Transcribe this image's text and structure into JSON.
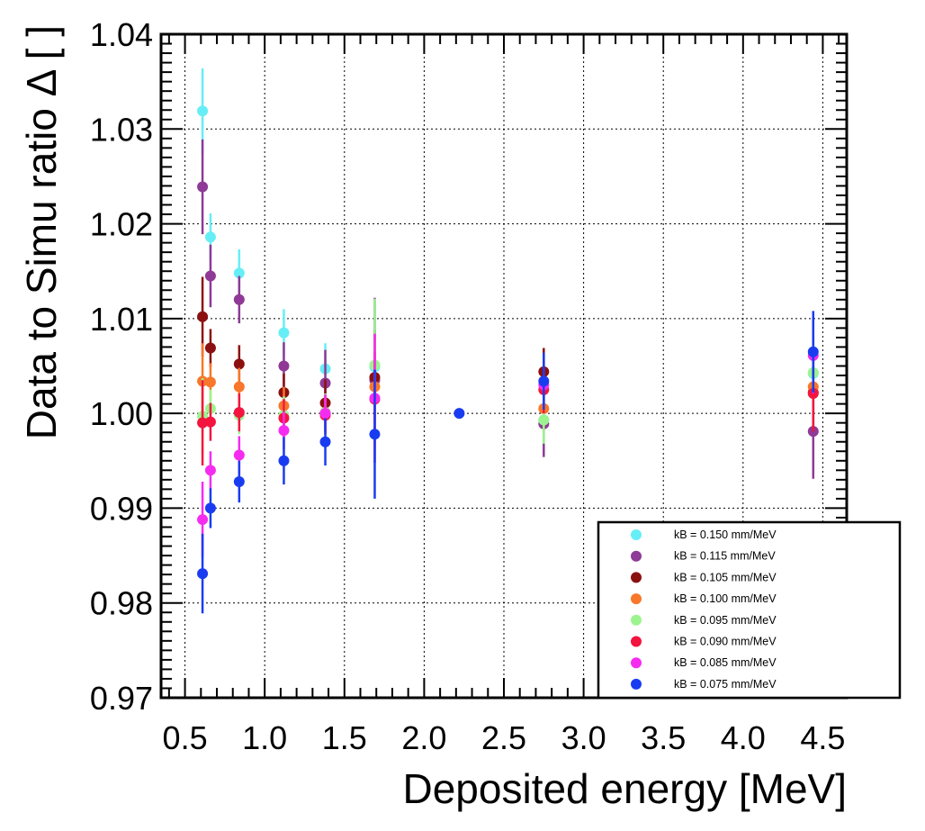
{
  "chart_data": {
    "type": "scatter",
    "xlabel": "Deposited energy [MeV]",
    "ylabel": "Data to Simu ratio Δ [ ]",
    "xlim": [
      0.35,
      4.65
    ],
    "ylim": [
      0.97,
      1.04
    ],
    "xticks": [
      "0.5",
      "1.0",
      "1.5",
      "2.0",
      "2.5",
      "3.0",
      "3.5",
      "4.0",
      "4.5"
    ],
    "yticks": [
      "0.97",
      "0.98",
      "0.99",
      "1.00",
      "1.01",
      "1.02",
      "1.03",
      "1.04"
    ],
    "grid": true,
    "legend_position": "bottom-right",
    "reference_point": {
      "x": 2.22,
      "y": 1.0,
      "color": "#1a3cf0"
    },
    "series": [
      {
        "name": "kB = 0.150 mm/MeV",
        "color": "#66eef6",
        "points": [
          {
            "x": 0.61,
            "y": 1.0319,
            "err": 0.0045
          },
          {
            "x": 0.66,
            "y": 1.0186,
            "err": 0.0025
          },
          {
            "x": 0.84,
            "y": 1.0148,
            "err": 0.0025
          },
          {
            "x": 1.12,
            "y": 1.0085,
            "err": 0.0025
          },
          {
            "x": 1.38,
            "y": 1.0047,
            "err": 0.0027
          },
          {
            "x": 1.69,
            "y": 1.0049,
            "err": 0.007
          },
          {
            "x": 2.75,
            "y": 0.9993,
            "err": 0.0035
          },
          {
            "x": 4.44,
            "y": 1.0042,
            "err": 0.004
          }
        ]
      },
      {
        "name": "kB = 0.115 mm/MeV",
        "color": "#8e3a96",
        "points": [
          {
            "x": 0.61,
            "y": 1.0239,
            "err": 0.005
          },
          {
            "x": 0.66,
            "y": 1.0145,
            "err": 0.0033
          },
          {
            "x": 0.84,
            "y": 1.012,
            "err": 0.0025
          },
          {
            "x": 1.12,
            "y": 1.005,
            "err": 0.0025
          },
          {
            "x": 1.38,
            "y": 1.0032,
            "err": 0.0035
          },
          {
            "x": 1.69,
            "y": 1.0035,
            "err": 0.0087
          },
          {
            "x": 2.75,
            "y": 0.9989,
            "err": 0.0035
          },
          {
            "x": 4.44,
            "y": 0.9981,
            "err": 0.005
          }
        ]
      },
      {
        "name": "kB = 0.105 mm/MeV",
        "color": "#8b1010",
        "points": [
          {
            "x": 0.61,
            "y": 1.0102,
            "err": 0.0042
          },
          {
            "x": 0.66,
            "y": 1.0069,
            "err": 0.002
          },
          {
            "x": 0.84,
            "y": 1.0052,
            "err": 0.002
          },
          {
            "x": 1.12,
            "y": 1.0022,
            "err": 0.002
          },
          {
            "x": 1.38,
            "y": 1.0011,
            "err": 0.0025
          },
          {
            "x": 1.69,
            "y": 1.0038,
            "err": 0.005
          },
          {
            "x": 2.75,
            "y": 1.0044,
            "err": 0.0025
          },
          {
            "x": 4.44,
            "y": 1.0022,
            "err": 0.004
          }
        ]
      },
      {
        "name": "kB = 0.100 mm/MeV",
        "color": "#f8772a",
        "points": [
          {
            "x": 0.61,
            "y": 1.0034,
            "err": 0.004
          },
          {
            "x": 0.66,
            "y": 1.0033,
            "err": 0.002
          },
          {
            "x": 0.84,
            "y": 1.0028,
            "err": 0.002
          },
          {
            "x": 1.12,
            "y": 1.0008,
            "err": 0.002
          },
          {
            "x": 1.38,
            "y": 1.0001,
            "err": 0.002
          },
          {
            "x": 1.69,
            "y": 1.0028,
            "err": 0.005
          },
          {
            "x": 2.75,
            "y": 1.0005,
            "err": 0.0025
          },
          {
            "x": 4.44,
            "y": 1.0028,
            "err": 0.004
          }
        ]
      },
      {
        "name": "kB = 0.095 mm/MeV",
        "color": "#9cf48e",
        "points": [
          {
            "x": 0.61,
            "y": 0.9997,
            "err": 0.004
          },
          {
            "x": 0.66,
            "y": 1.0005,
            "err": 0.002
          },
          {
            "x": 0.84,
            "y": 0.9998,
            "err": 0.002
          },
          {
            "x": 1.12,
            "y": 0.9998,
            "err": 0.002
          },
          {
            "x": 1.38,
            "y": 1.0001,
            "err": 0.002
          },
          {
            "x": 1.69,
            "y": 1.0051,
            "err": 0.007
          },
          {
            "x": 2.75,
            "y": 0.9993,
            "err": 0.0025
          },
          {
            "x": 4.44,
            "y": 1.0043,
            "err": 0.004
          }
        ]
      },
      {
        "name": "kB = 0.090 mm/MeV",
        "color": "#f3143f",
        "points": [
          {
            "x": 0.61,
            "y": 0.999,
            "err": 0.0045
          },
          {
            "x": 0.66,
            "y": 0.9991,
            "err": 0.002
          },
          {
            "x": 0.84,
            "y": 1.0001,
            "err": 0.002
          },
          {
            "x": 1.12,
            "y": 0.9995,
            "err": 0.002
          },
          {
            "x": 1.38,
            "y": 0.9998,
            "err": 0.002
          },
          {
            "x": 1.69,
            "y": 1.0015,
            "err": 0.005
          },
          {
            "x": 2.75,
            "y": 1.0025,
            "err": 0.0025
          },
          {
            "x": 4.44,
            "y": 1.0021,
            "err": 0.004
          }
        ]
      },
      {
        "name": "kB = 0.085 mm/MeV",
        "color": "#f52cf0",
        "points": [
          {
            "x": 0.61,
            "y": 0.9888,
            "err": 0.004
          },
          {
            "x": 0.66,
            "y": 0.994,
            "err": 0.002
          },
          {
            "x": 0.84,
            "y": 0.9956,
            "err": 0.002
          },
          {
            "x": 1.12,
            "y": 0.9982,
            "err": 0.002
          },
          {
            "x": 1.38,
            "y": 1.0,
            "err": 0.002
          },
          {
            "x": 1.69,
            "y": 1.0016,
            "err": 0.0068
          },
          {
            "x": 2.75,
            "y": 1.003,
            "err": 0.0025
          },
          {
            "x": 4.44,
            "y": 1.0061,
            "err": 0.004
          }
        ]
      },
      {
        "name": "kB = 0.075 mm/MeV",
        "color": "#1a3cf0",
        "points": [
          {
            "x": 0.61,
            "y": 0.9831,
            "err": 0.0042
          },
          {
            "x": 0.66,
            "y": 0.99,
            "err": 0.0021
          },
          {
            "x": 0.84,
            "y": 0.9928,
            "err": 0.0022
          },
          {
            "x": 1.12,
            "y": 0.995,
            "err": 0.0025
          },
          {
            "x": 1.38,
            "y": 0.997,
            "err": 0.0025
          },
          {
            "x": 1.69,
            "y": 0.9978,
            "err": 0.0068
          },
          {
            "x": 2.75,
            "y": 1.0034,
            "err": 0.003
          },
          {
            "x": 4.44,
            "y": 1.0065,
            "err": 0.0043
          }
        ]
      }
    ]
  }
}
